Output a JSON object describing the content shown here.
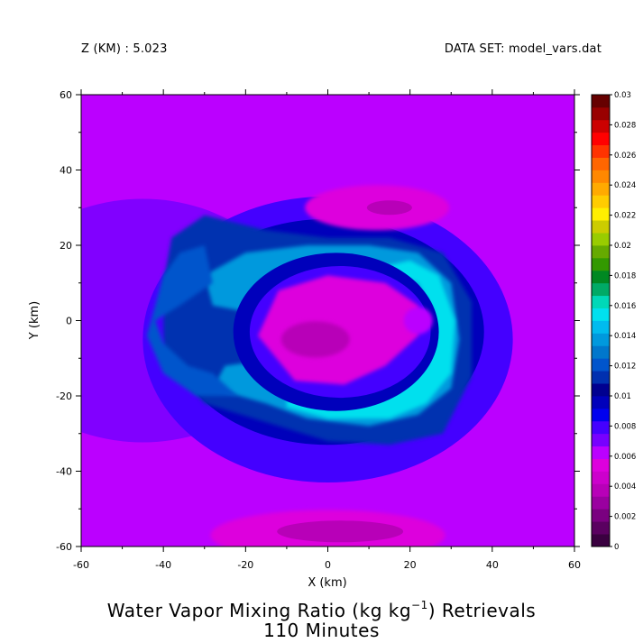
{
  "header": {
    "level_label": "Z (KM) : 5.023",
    "dataset_label": "DATA SET: model_vars.dat"
  },
  "title": {
    "line1_prefix": "Water Vapor Mixing Ratio (kg kg",
    "line1_exponent": "−1",
    "line1_suffix": ") Retrievals",
    "line2": "110 Minutes"
  },
  "chart_data": {
    "type": "heatmap",
    "xlabel": "X (km)",
    "ylabel": "Y (km)",
    "xlim": [
      -60,
      60
    ],
    "ylim": [
      -60,
      60
    ],
    "x_ticks": [
      -60,
      -40,
      -20,
      0,
      20,
      40,
      60
    ],
    "y_ticks": [
      -60,
      -40,
      -20,
      0,
      20,
      40,
      60
    ],
    "grid": false,
    "colorbar": {
      "placement": "right",
      "levels": [
        0,
        0.001,
        0.002,
        0.003,
        0.004,
        0.005,
        0.006,
        0.007,
        0.008,
        0.009,
        0.01,
        0.011,
        0.012,
        0.013,
        0.014,
        0.015,
        0.016,
        0.017,
        0.018,
        0.019,
        0.02,
        0.021,
        0.022,
        0.023,
        0.024,
        0.025,
        0.026,
        0.027,
        0.028,
        0.029,
        0.03
      ],
      "labels": [
        "0",
        "0.002",
        "0.004",
        "0.006",
        "0.008",
        "0.01",
        "0.012",
        "0.014",
        "0.016",
        "0.018",
        "0.02",
        "0.022",
        "0.024",
        "0.026",
        "0.028",
        "0.03"
      ],
      "colors": [
        "#3a0040",
        "#5a0060",
        "#7a0080",
        "#9a00a0",
        "#b800b8",
        "#cc00cc",
        "#dd00dd",
        "#bb00ff",
        "#7700ff",
        "#4400ff",
        "#0000ee",
        "#0000bb",
        "#000090",
        "#0030b0",
        "#0055cc",
        "#0077cc",
        "#0099dd",
        "#00bbee",
        "#00e0ee",
        "#00d8b8",
        "#00aa66",
        "#008822",
        "#339900",
        "#66aa00",
        "#99cc00",
        "#cccc00",
        "#ffee00",
        "#ffcc00",
        "#ffaa00",
        "#ff8800",
        "#ff6600",
        "#ff3300",
        "#ff0000",
        "#cc0000",
        "#990000",
        "#660000"
      ]
    },
    "features": [
      {
        "kind": "background",
        "value": 0.0065
      },
      {
        "kind": "ring",
        "cx": 0,
        "cy": -5,
        "rx": 45,
        "ry": 38,
        "value": 0.0085
      },
      {
        "kind": "ring",
        "cx": 0,
        "cy": -3,
        "rx": 38,
        "ry": 30,
        "value": 0.0095
      },
      {
        "kind": "band",
        "label": "spiral outer",
        "value": 0.0115
      },
      {
        "kind": "band",
        "label": "spiral inner",
        "value": 0.0145
      },
      {
        "kind": "band",
        "label": "eyewall",
        "value": 0.016
      },
      {
        "kind": "blob",
        "label": "eye",
        "cx": 0,
        "cy": -5,
        "value": 0.0055
      },
      {
        "kind": "blob",
        "label": "eye core",
        "cx": -3,
        "cy": -5,
        "value": 0.0042
      },
      {
        "kind": "blob",
        "label": "north",
        "cx": 12,
        "cy": 30,
        "value": 0.0055
      },
      {
        "kind": "blob",
        "label": "south",
        "cx": 0,
        "cy": -57,
        "value": 0.0055
      }
    ]
  }
}
